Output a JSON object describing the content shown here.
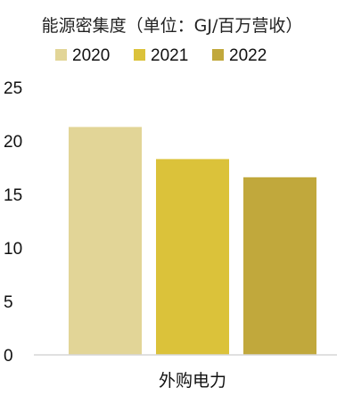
{
  "chart_data": {
    "type": "bar",
    "title": "能源密集度（单位：GJ/百万营收）",
    "categories": [
      "外购电力"
    ],
    "series": [
      {
        "name": "2020",
        "values": [
          21.3
        ],
        "color": "#E2D597"
      },
      {
        "name": "2021",
        "values": [
          18.3
        ],
        "color": "#DBC23A"
      },
      {
        "name": "2022",
        "values": [
          16.6
        ],
        "color": "#C1A83C"
      }
    ],
    "ylim": [
      0,
      25
    ],
    "yticks": [
      "0",
      "5",
      "10",
      "15",
      "20",
      "25"
    ],
    "xlabel": "",
    "ylabel": "",
    "grid": false,
    "legend_position": "top"
  }
}
